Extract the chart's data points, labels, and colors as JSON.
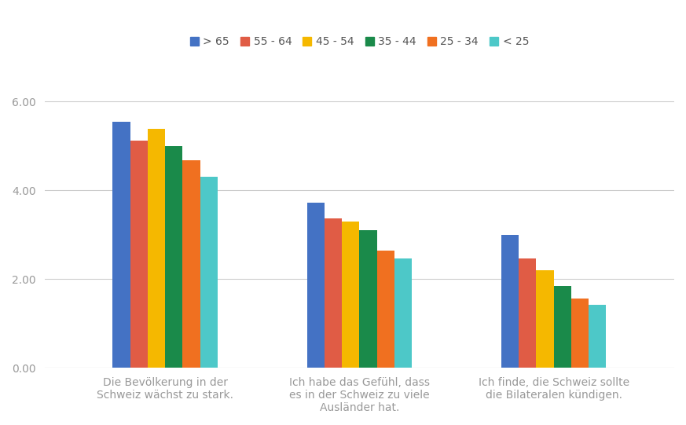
{
  "categories": [
    "Die Bevölkerung in der\nSchweiz wächst zu stark.",
    "Ich habe das Gefühl, dass\nes in der Schweiz zu viele\nAusländer hat.",
    "Ich finde, die Schweiz sollte\ndie Bilateralen kündigen."
  ],
  "series": [
    {
      "label": "> 65",
      "color": "#4472C4",
      "values": [
        5.54,
        3.73,
        3.0
      ]
    },
    {
      "label": "55 - 64",
      "color": "#E05C45",
      "values": [
        5.12,
        3.37,
        2.46
      ]
    },
    {
      "label": "45 - 54",
      "color": "#F5B800",
      "values": [
        5.38,
        3.3,
        2.2
      ]
    },
    {
      "label": "35 - 44",
      "color": "#1A8A4A",
      "values": [
        5.0,
        3.1,
        1.85
      ]
    },
    {
      "label": "25 - 34",
      "color": "#F07020",
      "values": [
        4.68,
        2.65,
        1.57
      ]
    },
    {
      "label": "< 25",
      "color": "#4DC8C8",
      "values": [
        4.3,
        2.47,
        1.43
      ]
    }
  ],
  "ylim": [
    0,
    6.8
  ],
  "yticks": [
    0.0,
    2.0,
    4.0,
    6.0
  ],
  "ytick_labels": [
    "0.00",
    "2.00",
    "4.00",
    "6.00"
  ],
  "background_color": "#ffffff",
  "grid_color": "#cccccc",
  "bar_width": 0.09,
  "legend_fontsize": 10,
  "tick_fontsize": 10,
  "label_fontsize": 10,
  "label_color": "#999999"
}
